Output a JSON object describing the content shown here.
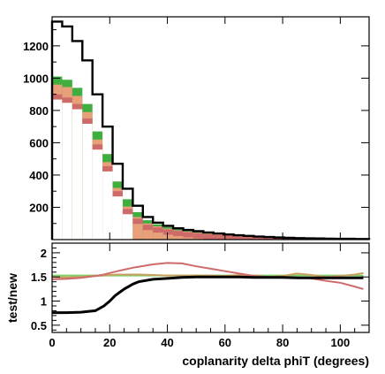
{
  "chart_data": [
    {
      "type": "bar",
      "panel": "upper",
      "ylabel": "",
      "xlim": [
        0,
        110
      ],
      "ylim": [
        0,
        1380
      ],
      "y_ticks": [
        200,
        400,
        600,
        800,
        1000,
        1200
      ],
      "grid": false,
      "legend": "none",
      "x_edges": [
        0,
        3.5,
        7,
        10.5,
        14,
        17.5,
        21,
        24.5,
        28,
        31.5,
        35,
        38.5,
        42,
        45.5,
        49,
        52.5,
        56,
        59.5,
        63,
        66.5,
        70,
        73.5,
        77,
        80.5,
        84,
        87.5,
        91,
        94.5,
        98,
        101.5,
        105,
        110
      ],
      "series": [
        {
          "style": "black-outline",
          "color": "#000000",
          "values": [
            1350,
            1320,
            1230,
            1110,
            900,
            700,
            470,
            315,
            210,
            140,
            105,
            85,
            70,
            60,
            52,
            44,
            38,
            32,
            27,
            23,
            19,
            16,
            13,
            11,
            9,
            8,
            7,
            6,
            5,
            5,
            4
          ]
        },
        {
          "style": "band-green",
          "color": "#3fae3f",
          "values": [
            1010,
            990,
            940,
            840,
            670,
            530,
            360,
            250,
            170,
            120,
            95,
            78,
            66,
            57,
            49,
            42,
            36,
            30,
            25,
            21,
            18,
            15,
            12,
            10,
            9,
            8,
            7,
            6,
            5,
            5,
            4
          ]
        },
        {
          "style": "band-salmon",
          "color": "#e8a07a",
          "values": [
            960,
            945,
            890,
            790,
            620,
            480,
            320,
            205,
            140,
            100,
            82,
            68,
            58,
            50,
            43,
            37,
            32,
            27,
            23,
            19,
            16,
            13,
            11,
            9,
            8,
            7,
            6,
            5,
            5,
            4,
            4
          ]
        },
        {
          "style": "band-rose",
          "color": "#cf6a6a",
          "values": [
            900,
            880,
            840,
            750,
            590,
            455,
            300,
            190,
            130,
            92,
            76,
            63,
            54,
            46,
            40,
            34,
            29,
            25,
            21,
            18,
            15,
            12,
            10,
            9,
            8,
            7,
            6,
            5,
            4,
            4,
            3
          ]
        }
      ]
    },
    {
      "type": "line",
      "panel": "lower",
      "ylabel": "test/new",
      "xlabel": "coplanarity delta phiT (degrees)",
      "xlim": [
        0,
        110
      ],
      "ylim": [
        0.35,
        2.2
      ],
      "x_ticks": [
        0,
        20,
        40,
        60,
        80,
        100
      ],
      "y_ticks": [
        0.5,
        1,
        1.5,
        2
      ],
      "grid": false,
      "legend": "none",
      "x": [
        0,
        5,
        10,
        15,
        18,
        20,
        22,
        25,
        28,
        30,
        35,
        40,
        45,
        50,
        55,
        60,
        65,
        70,
        75,
        80,
        85,
        90,
        95,
        100,
        105,
        108
      ],
      "series": [
        {
          "color": "#000000",
          "values": [
            0.76,
            0.76,
            0.77,
            0.8,
            0.9,
            1.0,
            1.12,
            1.25,
            1.35,
            1.4,
            1.45,
            1.47,
            1.49,
            1.5,
            1.5,
            1.5,
            1.5,
            1.49,
            1.49,
            1.49,
            1.48,
            1.48,
            1.48,
            1.48,
            1.48,
            1.48
          ]
        },
        {
          "color": "#cf6a6a",
          "values": [
            1.45,
            1.46,
            1.48,
            1.52,
            1.55,
            1.58,
            1.61,
            1.65,
            1.69,
            1.71,
            1.76,
            1.79,
            1.78,
            1.72,
            1.67,
            1.62,
            1.57,
            1.52,
            1.5,
            1.5,
            1.49,
            1.47,
            1.42,
            1.38,
            1.3,
            1.25
          ]
        },
        {
          "color": "#c8a060",
          "values": [
            1.5,
            1.49,
            1.5,
            1.52,
            1.53,
            1.54,
            1.55,
            1.55,
            1.55,
            1.55,
            1.54,
            1.53,
            1.53,
            1.53,
            1.53,
            1.52,
            1.54,
            1.53,
            1.5,
            1.52,
            1.57,
            1.54,
            1.5,
            1.52,
            1.55,
            1.58
          ]
        },
        {
          "color": "#7bd16b",
          "values": [
            1.53,
            1.53,
            1.53,
            1.53,
            1.53,
            1.53,
            1.53,
            1.53,
            1.53,
            1.53,
            1.53,
            1.53,
            1.53,
            1.53,
            1.53,
            1.53,
            1.53,
            1.53,
            1.53,
            1.53,
            1.53,
            1.53,
            1.53,
            1.53,
            1.53,
            1.53
          ]
        }
      ]
    }
  ]
}
